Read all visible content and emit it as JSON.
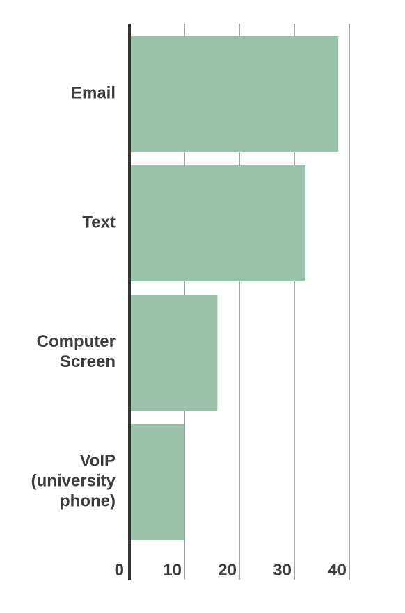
{
  "chart_data": {
    "type": "bar",
    "orientation": "horizontal",
    "categories": [
      [
        "Email"
      ],
      [
        "Text"
      ],
      [
        "Computer",
        "Screen"
      ],
      [
        "VoIP",
        "(university",
        "phone)"
      ]
    ],
    "values": [
      38,
      32,
      16,
      10
    ],
    "xlim": [
      0,
      40
    ],
    "xticks": [
      0,
      10,
      20,
      30,
      40
    ],
    "title": "",
    "xlabel": "",
    "ylabel": "",
    "grid": "vertical",
    "legend": "none",
    "bar_color": "#9bc1aa",
    "axis_color": "#333333",
    "grid_color": "#8a8a8a",
    "text_color": "#3d3d3d"
  }
}
